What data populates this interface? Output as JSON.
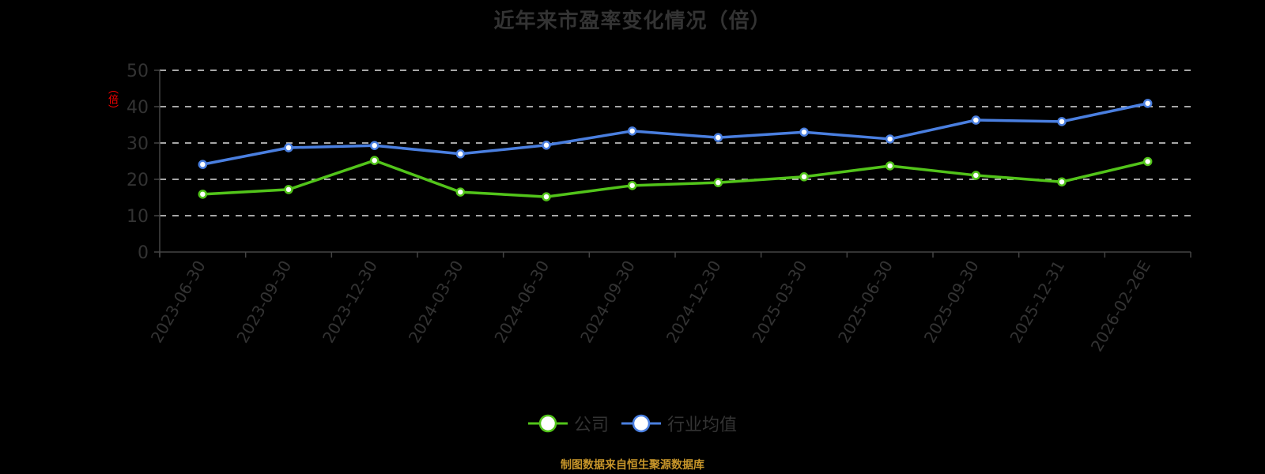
{
  "chart_data": {
    "type": "line",
    "title": "近年来市盈率变化情况（倍）",
    "xlabel": "",
    "ylabel": "（倍）",
    "ylim": [
      0,
      50
    ],
    "yticks": [
      0,
      10,
      20,
      30,
      40,
      50
    ],
    "grid": true,
    "legend_position": "bottom",
    "categories": [
      "2023-06-30",
      "2023-09-30",
      "2023-12-30",
      "2024-03-30",
      "2024-06-30",
      "2024-09-30",
      "2024-12-30",
      "2025-03-30",
      "2025-06-30",
      "2025-09-30",
      "2025-12-31",
      "2026-02-26E"
    ],
    "series": [
      {
        "name": "公司",
        "color": "#52c41a",
        "values": [
          15.9,
          17.2,
          25.2,
          16.5,
          15.2,
          18.3,
          19.1,
          20.7,
          23.7,
          21.1,
          19.3,
          24.9
        ]
      },
      {
        "name": "行业均值",
        "color": "#4a7fe0",
        "values": [
          24.1,
          28.7,
          29.3,
          27.0,
          29.4,
          33.3,
          31.5,
          33.0,
          31.1,
          36.3,
          35.9,
          40.9
        ]
      }
    ]
  },
  "labels": {
    "title": "近年来市盈率变化情况（倍）",
    "y_axis_name": "（倍）",
    "legend_company": "公司",
    "legend_industry": "行业均值",
    "footer": "制图数据来自恒生聚源数据库"
  },
  "colors": {
    "background": "#000000",
    "company": "#52c41a",
    "industry": "#4a7fe0",
    "axis": "#444444",
    "grid": "#dddddd",
    "text": "#333333",
    "footer": "#c8962a",
    "y_axis_name": "#ff0000"
  }
}
